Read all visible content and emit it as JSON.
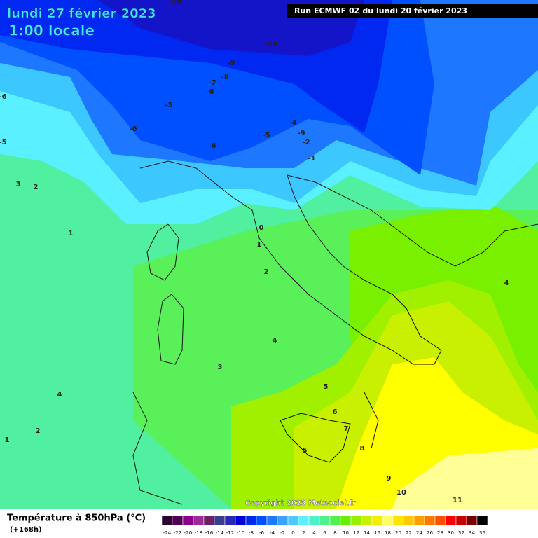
{
  "header": {
    "date": "lundi 27 février 2023",
    "time": "1:00 locale",
    "run": "Run ECMWF 0Z du lundi 20 février 2023"
  },
  "contour_labels": [
    -10,
    -10,
    -9,
    -8,
    -7,
    -6,
    -6,
    -5,
    -5,
    -6,
    -4,
    -9,
    -2,
    -1,
    -6,
    -5,
    3,
    2,
    1,
    0,
    1,
    2,
    4,
    3,
    4,
    2,
    1,
    5,
    6,
    7,
    8,
    5,
    9,
    10,
    11,
    4
  ],
  "footer": {
    "title": "Température à 850hPa (°C)",
    "lead": "(+168h)",
    "copyright": "Copyright 2023 Meteociel.fr"
  },
  "legend": {
    "labels": [
      -24,
      -22,
      -20,
      -18,
      -16,
      -14,
      -12,
      -10,
      -8,
      -6,
      -4,
      -2,
      0,
      2,
      4,
      6,
      8,
      10,
      12,
      14,
      16,
      18,
      20,
      22,
      24,
      26,
      28,
      30,
      32,
      34,
      36
    ],
    "colors": [
      "#2d0030",
      "#500050",
      "#8c008c",
      "#a0289b",
      "#6e1e64",
      "#3c3c8c",
      "#2828b4",
      "#0000dc",
      "#0028f0",
      "#0050ff",
      "#1e78ff",
      "#3ca0ff",
      "#50c8ff",
      "#5af0ff",
      "#50f0c8",
      "#50f08c",
      "#50f050",
      "#64f000",
      "#96f000",
      "#c8f000",
      "#f0f000",
      "#ffff64",
      "#ffe600",
      "#ffc800",
      "#ffa000",
      "#ff7800",
      "#ff5000",
      "#ff0000",
      "#c80000",
      "#780000",
      "#000000"
    ]
  }
}
